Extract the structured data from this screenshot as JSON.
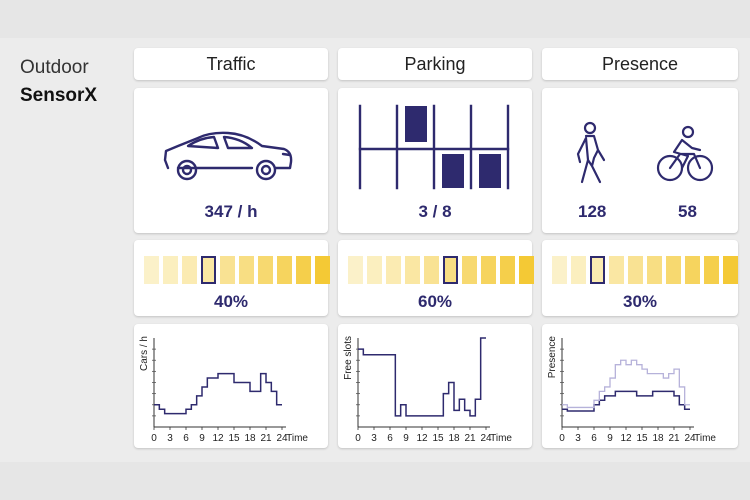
{
  "brand": {
    "subtitle": "Outdoor",
    "name": "SensorX"
  },
  "columns": [
    {
      "title": "Traffic",
      "value": "347 / h",
      "level_percent": "40%",
      "level_index": 3
    },
    {
      "title": "Parking",
      "value": "3 / 8",
      "level_percent": "60%",
      "level_index": 5
    },
    {
      "title": "Presence",
      "values": [
        "128",
        "58"
      ],
      "level_percent": "30%",
      "level_index": 2
    }
  ],
  "level_colors": [
    "#fbf1c9",
    "#fbefbf",
    "#fbebb2",
    "#fae7a3",
    "#f9e293",
    "#f8de83",
    "#f7d970",
    "#f6d45e",
    "#f5cf4b",
    "#f4c935"
  ],
  "accent": "#2e2a6e",
  "accent_light": "#b6b2da",
  "icons": {
    "traffic": "car-icon",
    "parking": "parking-lot-icon",
    "pedestrian": "pedestrian-icon",
    "cyclist": "cyclist-icon"
  },
  "chart_data": [
    {
      "type": "line",
      "step": true,
      "ylabel": "Cars / h",
      "xlabel": "Time",
      "xticks": [
        0,
        3,
        6,
        9,
        12,
        15,
        18,
        21,
        24
      ],
      "xlim": [
        0,
        24
      ],
      "ylim": [
        0,
        10
      ],
      "series": [
        {
          "x": [
            0,
            1,
            2,
            3,
            4,
            5,
            6,
            7,
            8,
            9,
            10,
            11,
            12,
            13,
            14,
            15,
            16,
            17,
            18,
            19,
            20,
            21,
            22,
            23,
            24
          ],
          "y": [
            2.5,
            2.0,
            1.5,
            1.5,
            1.5,
            1.5,
            2.0,
            2.5,
            3.5,
            4.5,
            5.5,
            5.5,
            6.0,
            6.0,
            6.0,
            5.0,
            5.0,
            5.0,
            4.0,
            4.0,
            6.0,
            5.0,
            4.0,
            2.5,
            2.5
          ]
        }
      ]
    },
    {
      "type": "line",
      "step": true,
      "ylabel": "Free slots",
      "xlabel": "Time",
      "xticks": [
        0,
        3,
        6,
        9,
        12,
        15,
        18,
        21,
        24
      ],
      "xlim": [
        0,
        24
      ],
      "ylim": [
        0,
        8
      ],
      "series": [
        {
          "x": [
            0,
            1,
            2,
            3,
            4,
            5,
            6,
            7,
            8,
            9,
            10,
            11,
            12,
            13,
            14,
            15,
            16,
            17,
            18,
            19,
            20,
            21,
            22,
            23,
            24
          ],
          "y": [
            7,
            6.5,
            6.5,
            6.5,
            6.5,
            6.5,
            6.5,
            1,
            2,
            1,
            1,
            1,
            1,
            1,
            1,
            1,
            3,
            4,
            1.5,
            2.5,
            1.5,
            1,
            2.5,
            8,
            8
          ]
        }
      ]
    },
    {
      "type": "line",
      "step": true,
      "ylabel": "Presence",
      "xlabel": "Time",
      "xticks": [
        0,
        3,
        6,
        9,
        12,
        15,
        18,
        21,
        24
      ],
      "xlim": [
        0,
        24
      ],
      "ylim": [
        0,
        10
      ],
      "series": [
        {
          "x": [
            0,
            1,
            2,
            3,
            4,
            5,
            6,
            7,
            8,
            9,
            10,
            11,
            12,
            13,
            14,
            15,
            16,
            17,
            18,
            19,
            20,
            21,
            22,
            23,
            24
          ],
          "y": [
            2.0,
            1.8,
            1.8,
            1.8,
            1.8,
            1.8,
            2.5,
            3.0,
            3.5,
            3.5,
            4.0,
            4.0,
            4.0,
            4.0,
            3.5,
            3.5,
            3.5,
            4.0,
            4.0,
            4.0,
            4.0,
            3.5,
            2.5,
            2.0,
            2.0
          ]
        },
        {
          "x": [
            0,
            1,
            2,
            3,
            4,
            5,
            6,
            7,
            8,
            9,
            10,
            11,
            12,
            13,
            14,
            15,
            16,
            17,
            18,
            19,
            20,
            21,
            22,
            23,
            24
          ],
          "y": [
            2.5,
            2.2,
            2.2,
            2.2,
            2.2,
            2.2,
            3.0,
            4.0,
            4.5,
            5.5,
            7.0,
            7.5,
            7.0,
            7.5,
            7.0,
            6.5,
            6.0,
            6.0,
            6.0,
            5.5,
            6.0,
            6.5,
            4.5,
            2.5,
            2.5
          ]
        }
      ]
    }
  ]
}
